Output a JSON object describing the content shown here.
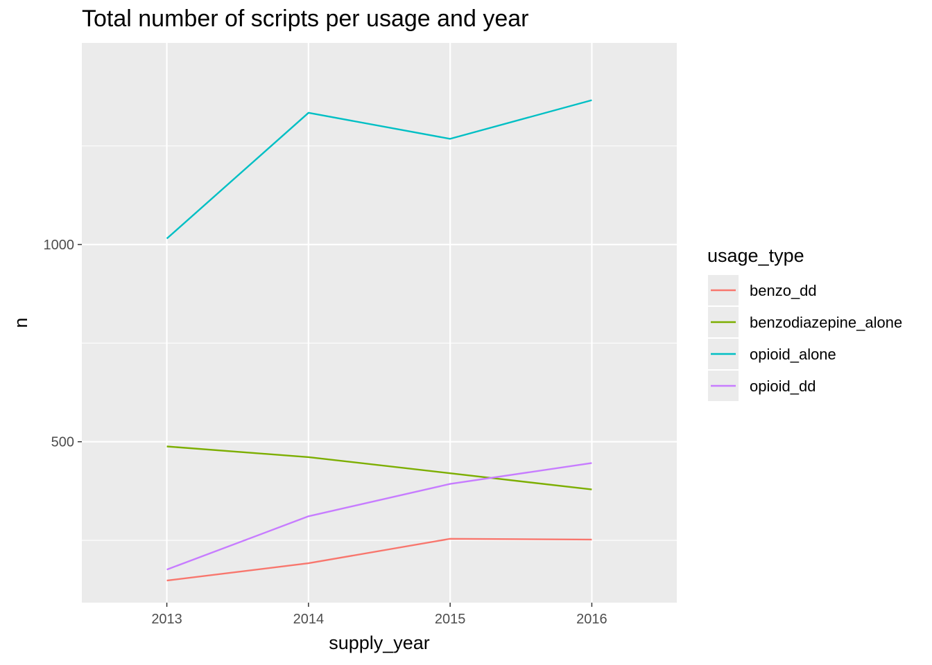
{
  "chart_data": {
    "type": "line",
    "title": "Total number of scripts per usage and year",
    "xlabel": "supply_year",
    "ylabel": "n",
    "x": [
      2013,
      2014,
      2015,
      2016
    ],
    "xlim": [
      2012.4,
      2016.6
    ],
    "ylim": [
      92,
      1511
    ],
    "y_ticks": [
      500,
      1000
    ],
    "y_minor_ticks": [
      250,
      750,
      1250
    ],
    "grid": true,
    "legend_title": "usage_type",
    "legend_position": "right",
    "series": [
      {
        "name": "benzo_dd",
        "color": "#F8766D",
        "values": [
          148,
          192,
          254,
          252
        ]
      },
      {
        "name": "benzodiazepine_alone",
        "color": "#7CAE00",
        "values": [
          488,
          461,
          420,
          379
        ]
      },
      {
        "name": "opioid_alone",
        "color": "#00BFC4",
        "values": [
          1015,
          1334,
          1268,
          1366
        ]
      },
      {
        "name": "opioid_dd",
        "color": "#C77CFF",
        "values": [
          176,
          311,
          393,
          446
        ]
      }
    ]
  }
}
